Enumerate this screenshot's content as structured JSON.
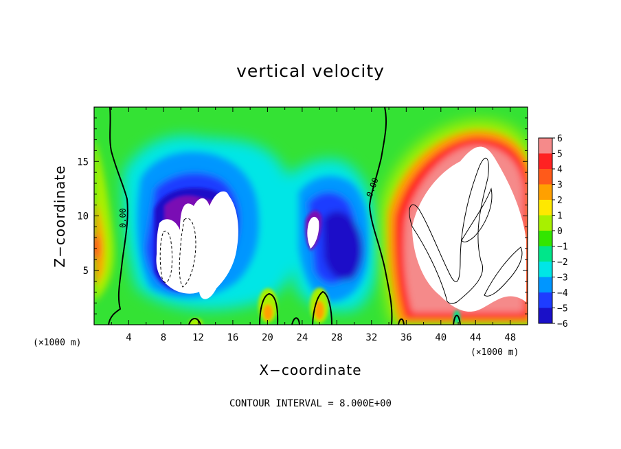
{
  "chart_data": {
    "type": "heatmap",
    "title": "vertical velocity",
    "xlabel": "X−coordinate",
    "ylabel": "Z−coordinate",
    "x_unit_left": "(×1000 m)",
    "x_unit_right": "(×1000 m)",
    "xlim": [
      0,
      50
    ],
    "ylim": [
      0,
      20
    ],
    "xticks": [
      4,
      8,
      12,
      16,
      20,
      24,
      28,
      32,
      36,
      40,
      44,
      48
    ],
    "yticks": [
      5,
      10,
      15
    ],
    "colorbar": {
      "min": -6,
      "max": 6,
      "ticks": [
        "6",
        "5",
        "4",
        "3",
        "2",
        "1",
        "0",
        "−1",
        "−2",
        "−3",
        "−4",
        "−5",
        "−6"
      ],
      "colors": [
        "#f58a8a",
        "#ff2222",
        "#ff5a1a",
        "#ffa000",
        "#ffe800",
        "#a8f000",
        "#33e600",
        "#00e68a",
        "#00e6e6",
        "#0096ff",
        "#1e3cff",
        "#1a10c8",
        "#7a10b4"
      ]
    },
    "contour_labels": [
      "0.00",
      "0.00"
    ],
    "contour_interval_text": "CONTOUR INTERVAL = 8.000E+00"
  }
}
